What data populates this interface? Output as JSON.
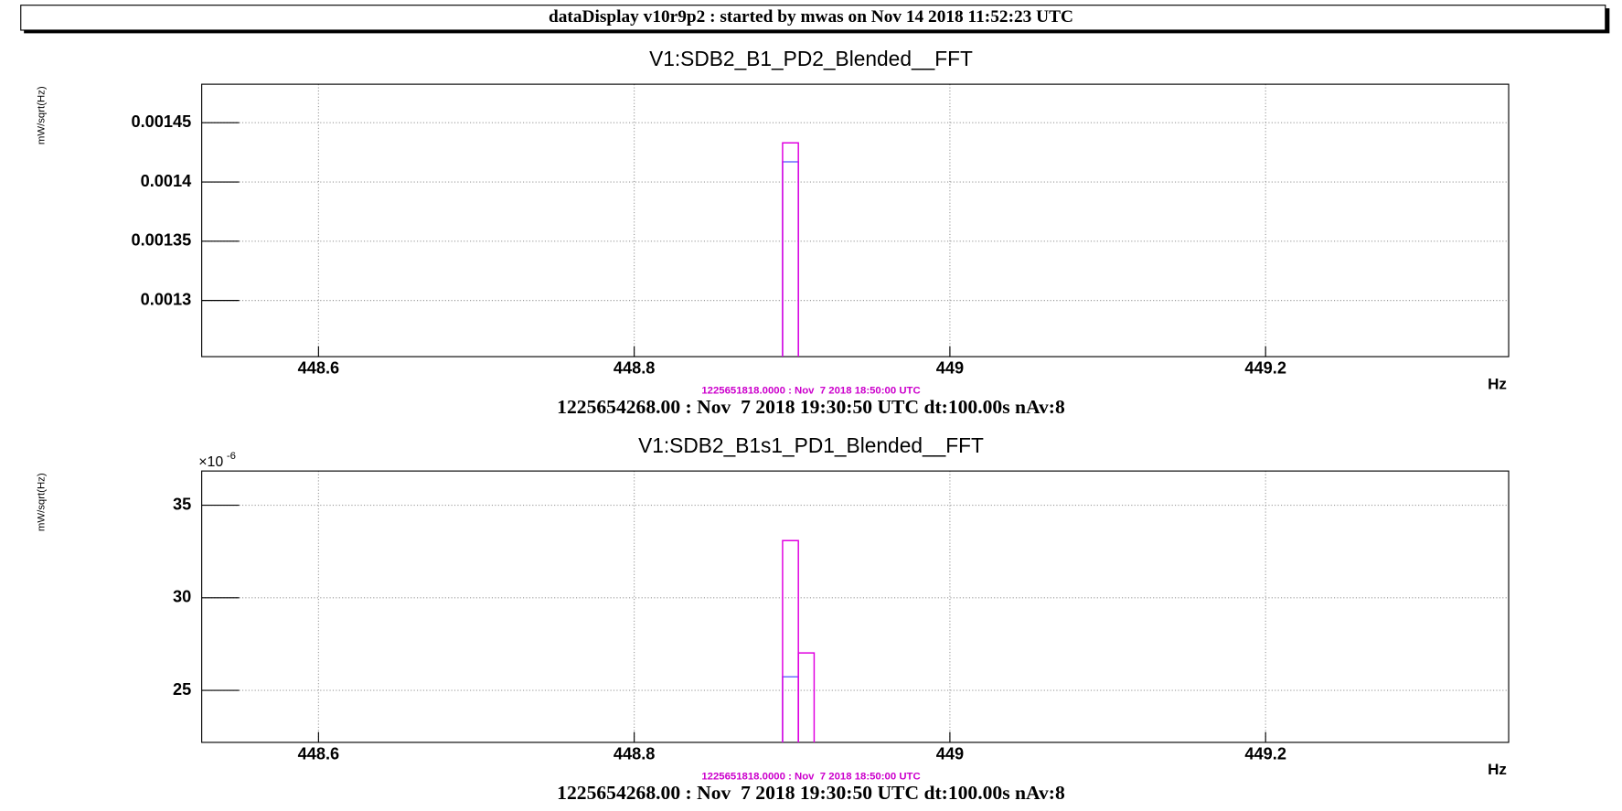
{
  "header": "dataDisplay v10r9p2 : started by mwas on Nov 14 2018 11:52:23 UTC",
  "chart_data": [
    {
      "type": "histogram",
      "title": "V1:SDB2_B1_PD2_Blended__FFT",
      "y_label": "mW/sqrt(Hz)",
      "x_label": "Hz",
      "bins": [
        448.894,
        448.904
      ],
      "series": [
        {
          "color": "#6b6bff",
          "values": [
            0.001417
          ]
        },
        {
          "color": "#e000e0",
          "values": [
            0.001433
          ]
        }
      ],
      "xlim": [
        448.526,
        449.354
      ],
      "xticks": [
        448.6,
        448.8,
        449,
        449.2
      ],
      "ylim": [
        0.0012526,
        0.0014825
      ],
      "yticks": [
        0.00145,
        0.0014,
        0.00135,
        0.0013
      ],
      "grid": true,
      "annotation": "1225651818.0000 : Nov  7 2018 18:50:00 UTC",
      "footer": "1225654268.00 : Nov  7 2018 19:30:50 UTC dt:100.00s nAv:8"
    },
    {
      "type": "histogram",
      "title": "V1:SDB2_B1s1_PD1_Blended__FFT",
      "y_label": "mW/sqrt(Hz)",
      "x_label": "Hz",
      "multiplier": {
        "base": "×10",
        "exponent": "-6"
      },
      "bins": [
        448.894,
        448.904,
        448.914
      ],
      "series": [
        {
          "color": "#6b6bff",
          "values": [
            25.73,
            null
          ]
        },
        {
          "color": "#e000e0",
          "values": [
            33.09,
            27.02
          ]
        }
      ],
      "xlim": [
        448.526,
        449.354
      ],
      "xticks": [
        448.6,
        448.8,
        449,
        449.2
      ],
      "ylim": [
        22.19,
        36.85
      ],
      "yticks": [
        35,
        30,
        25
      ],
      "grid": true,
      "annotation": "1225651818.0000 : Nov  7 2018 18:50:00 UTC",
      "footer": "1225654268.00 : Nov  7 2018 19:30:50 UTC dt:100.00s nAv:8"
    }
  ]
}
